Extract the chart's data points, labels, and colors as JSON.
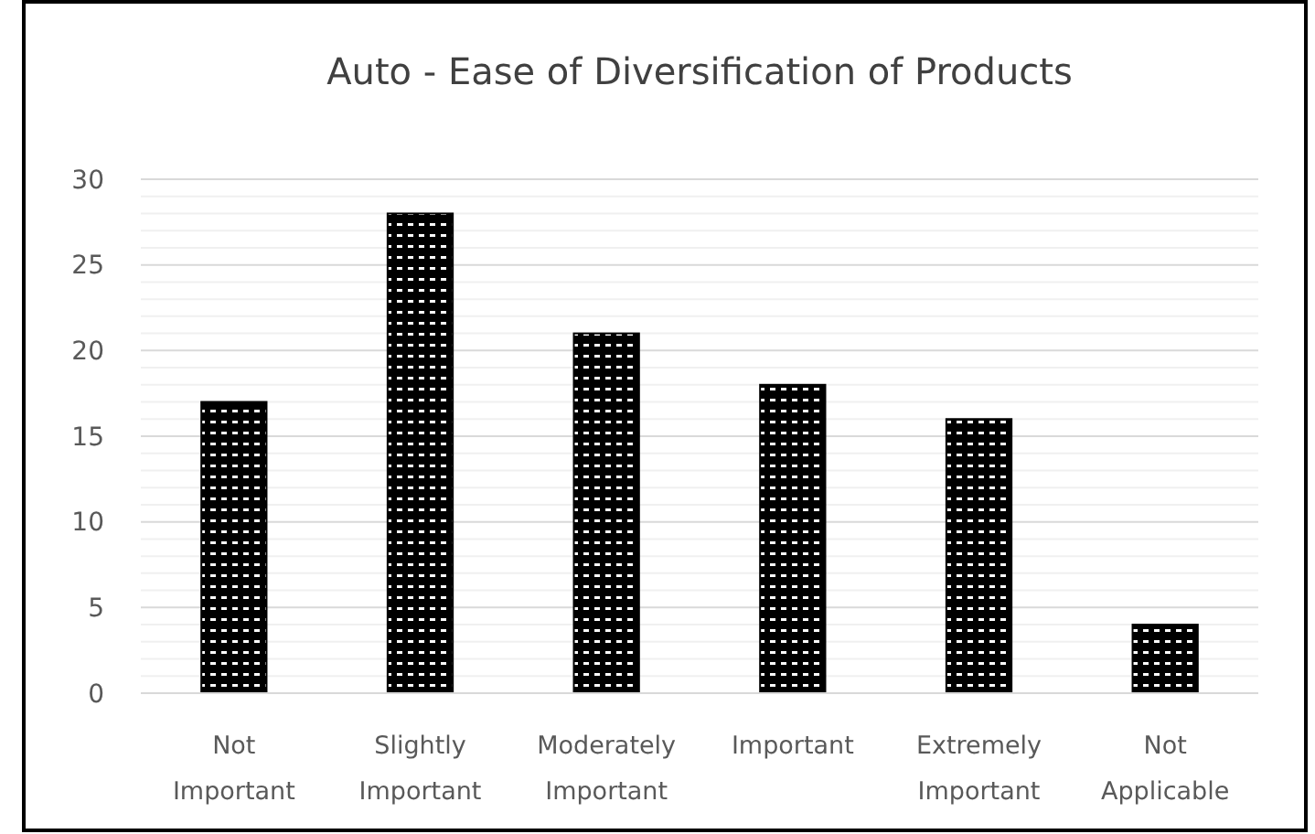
{
  "chart_data": {
    "type": "bar",
    "title": "Auto - Ease of Diversification of Products",
    "categories": [
      "Not Important",
      "Slightly Important",
      "Moderately Important",
      "Important",
      "Extremely Important",
      "Not Applicable"
    ],
    "values": [
      17,
      28,
      21,
      18,
      16,
      4
    ],
    "color": "#000000",
    "ylim": [
      0,
      30
    ],
    "yticks": [
      0,
      {
        "value": 1,
        "label": null
      },
      {
        "value": 2,
        "label": null
      },
      {
        "value": 3,
        "label": null
      },
      {
        "value": 4,
        "label": null
      },
      5,
      {
        "value": 6,
        "label": null
      },
      {
        "value": 7,
        "label": null
      },
      {
        "value": 8,
        "label": null
      },
      {
        "value": 9,
        "label": null
      },
      10,
      {
        "value": 11,
        "label": null
      },
      {
        "value": 12,
        "label": null
      },
      {
        "value": 13,
        "label": null
      },
      {
        "value": 14,
        "label": null
      },
      15,
      {
        "value": 16,
        "label": null
      },
      {
        "value": 17,
        "label": null
      },
      {
        "value": 18,
        "label": null
      },
      {
        "value": 19,
        "label": null
      },
      20,
      {
        "value": 21,
        "label": null
      },
      {
        "value": 22,
        "label": null
      },
      {
        "value": 23,
        "label": null
      },
      {
        "value": 24,
        "label": null
      },
      25,
      {
        "value": 26,
        "label": null
      },
      {
        "value": 27,
        "label": null
      },
      {
        "value": 28,
        "label": null
      },
      {
        "value": 29,
        "label": null
      },
      30
    ],
    "grid": "y"
  }
}
